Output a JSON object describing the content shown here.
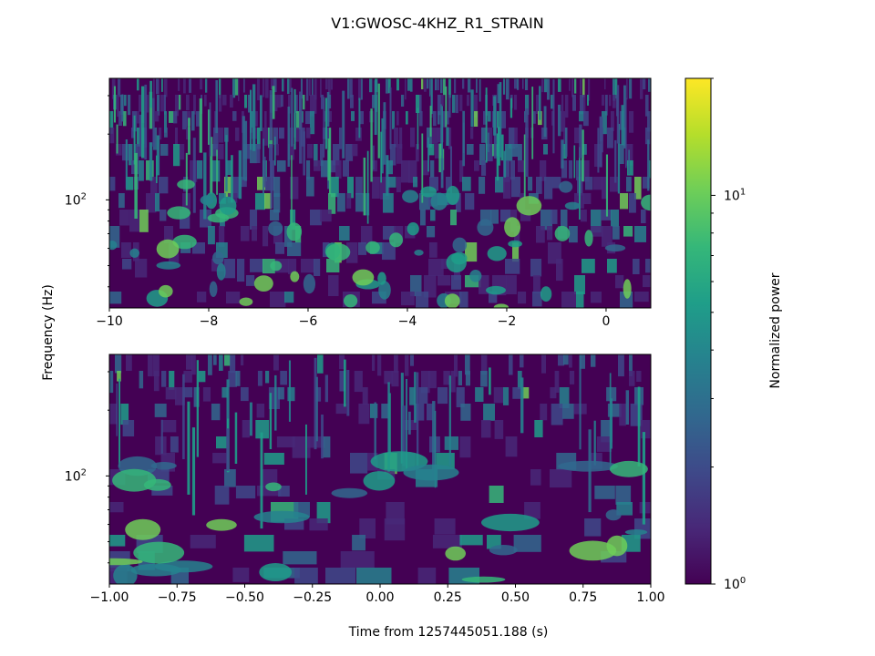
{
  "chart_data": {
    "type": "heatmap",
    "title": "V1:GWOSC-4KHZ_R1_STRAIN",
    "ylabel": "Frequency (Hz)",
    "xlabel": "Time from 1257445051.188 (s)",
    "colorbar": {
      "label": "Normalized power",
      "scale": "log",
      "range": [
        1,
        20
      ],
      "major_ticks": [
        {
          "value": 1,
          "base": "10",
          "exp": "0"
        },
        {
          "value": 10,
          "base": "10",
          "exp": "1"
        }
      ],
      "minor_ticks": [
        2,
        3,
        4,
        5,
        6,
        7,
        8,
        9,
        20
      ],
      "colormap": "viridis",
      "colors": [
        "#440154",
        "#482878",
        "#3e4989",
        "#31688e",
        "#26828e",
        "#1f9e89",
        "#35b779",
        "#6ece58",
        "#b5de2b",
        "#fde725"
      ]
    },
    "panels": [
      {
        "name": "top",
        "xlim": [
          -10,
          0.9
        ],
        "ylim": [
          32,
          360
        ],
        "yscale": "log",
        "xticks": [
          -10,
          -8,
          -6,
          -4,
          -2,
          0
        ],
        "xtick_labels": [
          "−10",
          "−8",
          "−6",
          "−4",
          "−2",
          "0"
        ],
        "ytick": {
          "value": 100,
          "base": "10",
          "exp": "2"
        }
      },
      {
        "name": "bottom",
        "xlim": [
          -1,
          1
        ],
        "ylim": [
          32,
          360
        ],
        "yscale": "log",
        "xticks": [
          -1,
          -0.75,
          -0.5,
          -0.25,
          0,
          0.25,
          0.5,
          0.75,
          1
        ],
        "xtick_labels": [
          "−1.00",
          "−0.75",
          "−0.50",
          "−0.25",
          "0.00",
          "0.25",
          "0.50",
          "0.75",
          "1.00"
        ],
        "ytick": {
          "value": 100,
          "base": "10",
          "exp": "2"
        }
      }
    ]
  }
}
